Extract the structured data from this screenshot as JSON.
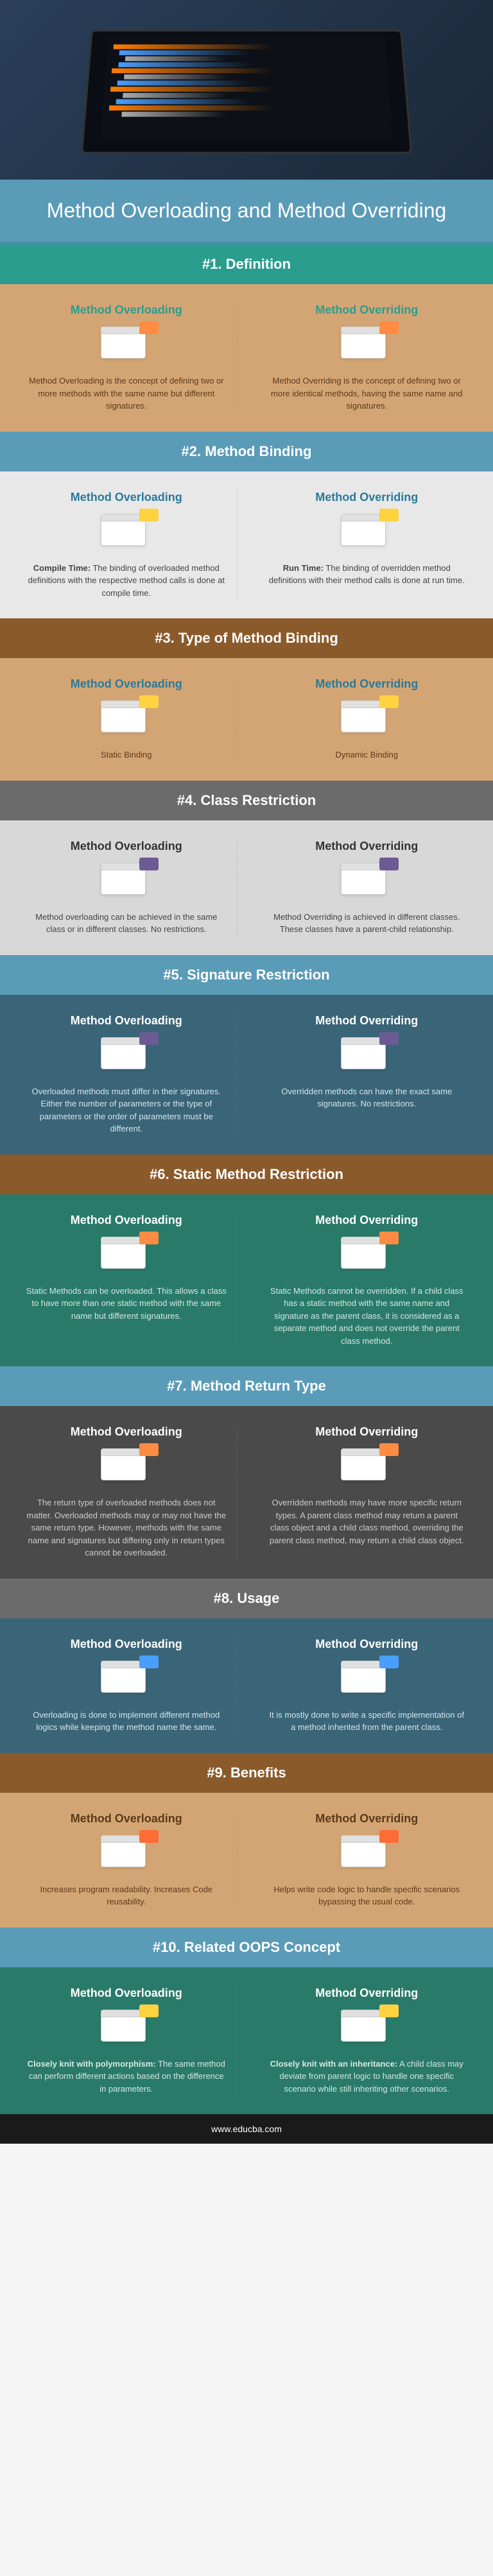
{
  "title": "Method Overloading and Method Overriding",
  "footer": "www.educba.com",
  "col_left_title": "Method Overloading",
  "col_right_title": "Method Overriding",
  "sections": [
    {
      "header": "#1. Definition",
      "header_bg": "#2a9d8f",
      "body_bg": "#d4a574",
      "text_color": "#5a3a1a",
      "title_color": "#2a9d8f",
      "accent": "#ff8c42",
      "left": "Method Overloading is the concept of defining two or more methods with the same name but different signatures.",
      "right": "Method Overriding is the concept of defining two or more identical methods, having the same name and signatures."
    },
    {
      "header": "#2. Method Binding",
      "header_bg": "#5a9bb8",
      "body_bg": "#e8e8e8",
      "text_color": "#444",
      "title_color": "#2a7a9a",
      "accent": "#ffd23f",
      "left_bold": "Compile Time:",
      "left": " The binding of overloaded method definitions with the respective method calls is done at compile time.",
      "right_bold": "Run Time:",
      "right": " The binding of overridden method definitions with their method calls is done at run time."
    },
    {
      "header": "#3. Type of Method Binding",
      "header_bg": "#8b5a2b",
      "body_bg": "#d4a574",
      "text_color": "#5a3a1a",
      "title_color": "#2a7a9a",
      "accent": "#ffd23f",
      "left": "Static Binding",
      "right": "Dynamic Binding"
    },
    {
      "header": "#4. Class Restriction",
      "header_bg": "#6b6b6b",
      "body_bg": "#d8d8d8",
      "text_color": "#444",
      "title_color": "#333",
      "accent": "#6b5b95",
      "left": "Method overloading can be achieved in the same class or in different classes. No restrictions.",
      "right": "Method Overriding is achieved in different classes. These classes have a parent-child relationship."
    },
    {
      "header": "#5. Signature Restriction",
      "header_bg": "#5a9bb8",
      "body_bg": "#3a6578",
      "text_color": "#d4e4ec",
      "title_color": "#fff",
      "accent": "#6b5b95",
      "left": "Overloaded methods must differ in their signatures. Either the number of parameters or the type of parameters or the order of parameters must be different.",
      "right": "Overridden methods can have the exact same signatures. No restrictions."
    },
    {
      "header": "#6. Static Method Restriction",
      "header_bg": "#8b5a2b",
      "body_bg": "#2a7a6a",
      "text_color": "#d4e8e0",
      "title_color": "#fff",
      "accent": "#ff8c42",
      "left": "Static Methods can be overloaded. This allows a class to have more than one static method with the same name but different signatures.",
      "right": "Static Methods cannot be overridden. If a child class has a static method with the same name and signature as the parent class, it is considered as a separate method and does not override the parent class method."
    },
    {
      "header": "#7. Method Return Type",
      "header_bg": "#5a9bb8",
      "body_bg": "#4a4a4a",
      "text_color": "#ccc",
      "title_color": "#fff",
      "accent": "#ff8c42",
      "left": "The return type of overloaded methods does not matter. Overloaded methods may or may not have the same return type. However, methods with the same name and signatures but differing only in return types cannot be overloaded.",
      "right": "Overridden methods may have more specific return types. A parent class method may return a parent class object and a child class method, overriding the parent class method, may return a child class object."
    },
    {
      "header": "#8. Usage",
      "header_bg": "#6b6b6b",
      "body_bg": "#3a6578",
      "text_color": "#d4e4ec",
      "title_color": "#fff",
      "accent": "#4a9eff",
      "left": "Overloading is done to implement different method logics while keeping the method name the same.",
      "right": "It is mostly done to write a specific implementation of a method inherited from the parent class."
    },
    {
      "header": "#9. Benefits",
      "header_bg": "#8b5a2b",
      "body_bg": "#d4a574",
      "text_color": "#5a3a1a",
      "title_color": "#5a3a1a",
      "accent": "#ff6b35",
      "left": "Increases program readability. Increases Code reusability.",
      "right": "Helps write code logic to handle specific scenarios bypassing the usual code."
    },
    {
      "header": "#10. Related OOPS Concept",
      "header_bg": "#5a9bb8",
      "body_bg": "#2a7a6a",
      "text_color": "#d4e8e0",
      "title_color": "#fff",
      "accent": "#ffd23f",
      "left_bold": "Closely knit with polymorphism:",
      "left": " The same method can perform different actions based on the difference in parameters.",
      "right_bold": "Closely knit with an inheritance:",
      "right": " A child class may deviate from parent logic to handle one specific scenario while still inheriting other scenarios."
    }
  ]
}
